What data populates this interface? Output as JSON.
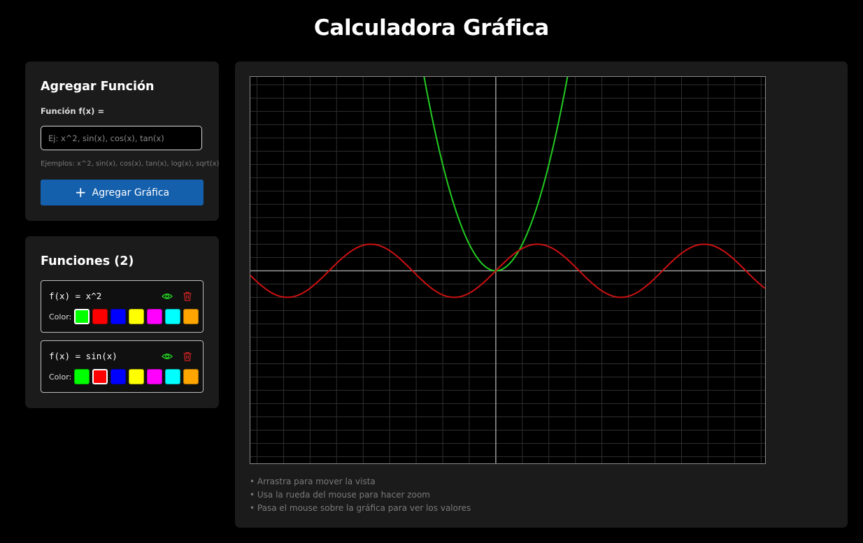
{
  "page": {
    "title": "Calculadora Gráfica"
  },
  "add_panel": {
    "heading": "Agregar Función",
    "field_label": "Función f(x) =",
    "input_value": "",
    "input_placeholder": "Ej: x^2, sin(x), cos(x), tan(x)",
    "examples": "Ejemplos: x^2, sin(x), cos(x), tan(x), log(x), sqrt(x)",
    "button_label": "Agregar Gráfica",
    "button_icon": "plus-icon"
  },
  "functions_panel": {
    "heading": "Funciones (2)",
    "color_label": "Color:",
    "palette": [
      "#00ff00",
      "#ff0000",
      "#0000ff",
      "#ffff00",
      "#ff00ff",
      "#00ffff",
      "#ffa500"
    ],
    "items": [
      {
        "expr": "f(x) = x^2",
        "color": "#22cc22",
        "selected_index": 0,
        "visible": true
      },
      {
        "expr": "f(x) = sin(x)",
        "color": "#cc1111",
        "selected_index": 1,
        "visible": true
      }
    ],
    "icons": {
      "visibility": "eye-icon",
      "delete": "trash-icon"
    },
    "icon_colors": {
      "eye": "#22cc22",
      "trash": "#cc2222"
    }
  },
  "graph": {
    "x_range": [
      -9.25,
      10.15
    ],
    "y_range": [
      -7.25,
      7.3
    ],
    "grid": true,
    "axis_color": "#9a9a9a",
    "grid_color": "#2e2e2e",
    "plots": [
      {
        "fn": "x^2",
        "color": "#22cc22"
      },
      {
        "fn": "sin(x)",
        "color": "#cc1111"
      }
    ],
    "hints": [
      "• Arrastra para mover la vista",
      "• Usa la rueda del mouse para hacer zoom",
      "• Pasa el mouse sobre la gráfica para ver los valores"
    ]
  }
}
